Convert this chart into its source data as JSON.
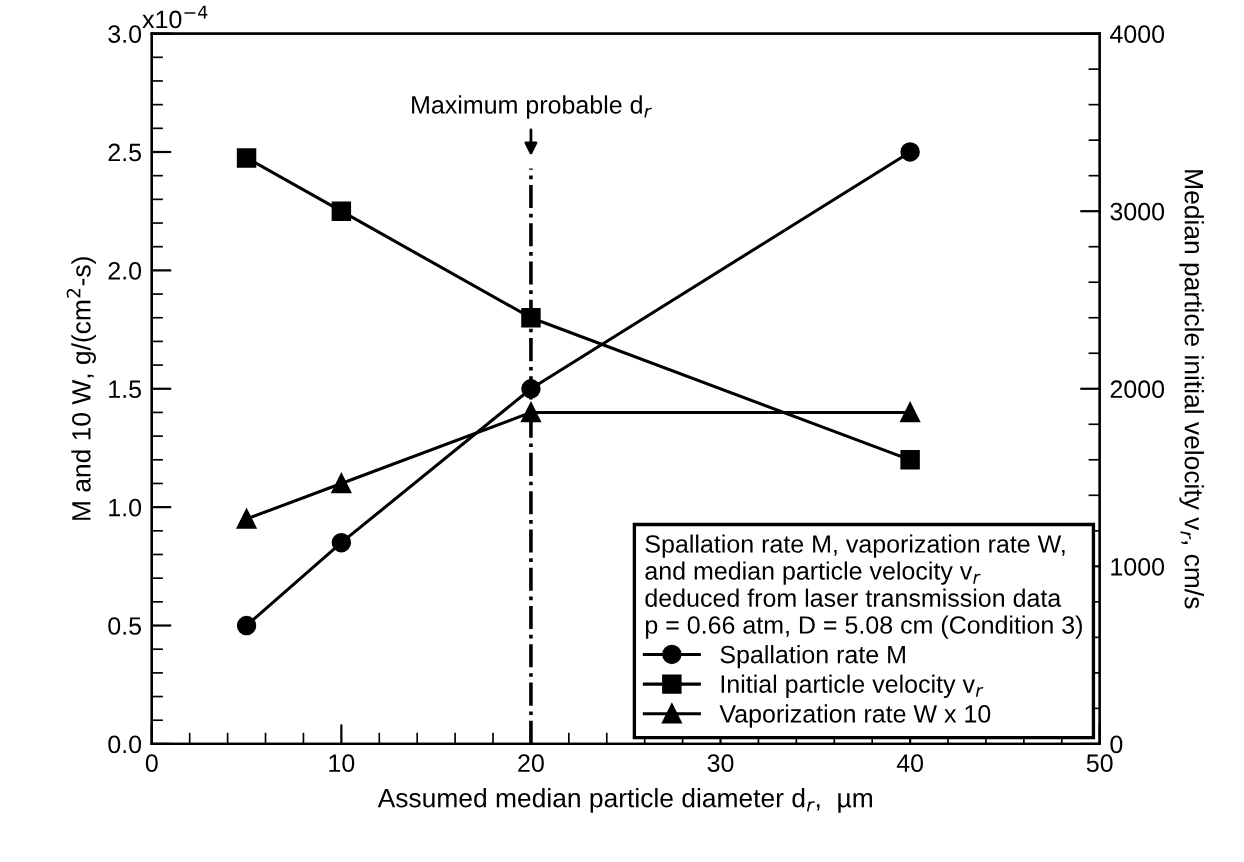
{
  "chart_data": {
    "type": "line",
    "xlabel": "Assumed median particle diameter d$_{r}$,  µm",
    "ylabel": "M and 10 W, g/(cm$^{2}$-s)",
    "y2label": "Median particle initial velocity v$_{r}$, cm/s",
    "legend_title": "Spallation rate M, vaporization rate W,\nand median particle velocity v$_{r}$\ndeduced from laser transmission data\np = 0.66 atm, D = 5.08 cm (Condition 3)",
    "legend": "bottom right",
    "grid": false,
    "line_style": "solid",
    "xlim": [
      0,
      50
    ],
    "xticks": [
      0,
      10,
      20,
      30,
      40,
      50
    ],
    "ylim": [
      0,
      3.0
    ],
    "yticks": [
      {
        "value": 0,
        "label": "0.0"
      },
      {
        "value": 0.5,
        "label": "0.5"
      },
      {
        "value": 1.0,
        "label": "1.0"
      },
      {
        "value": 1.5,
        "label": "1.5"
      },
      {
        "value": 2.0,
        "label": "2.0"
      },
      {
        "value": 2.5,
        "label": "2.5"
      },
      {
        "value": 3.0,
        "label": "3.0"
      }
    ],
    "annotations": [
      "x10$^{−4}$"
    ],
    "y2lim": [
      0,
      4000
    ],
    "y2ticks": [
      0,
      1000,
      2000,
      3000,
      4000
    ],
    "ref_lines": [
      {
        "axis": "x",
        "value": 20,
        "label": "Maximum probable d$_{r}$",
        "line_style": "dashdot",
        "color": "#000000"
      }
    ],
    "series": [
      {
        "name": "Spallation rate M",
        "color": "#000000",
        "marker": "circle",
        "x": [
          5,
          10,
          20,
          40
        ],
        "values": [
          0.5,
          0.85,
          1.5,
          2.5
        ]
      },
      {
        "name": "Initial particle velocity v$_{r}$",
        "color": "#000000",
        "marker": "square",
        "axis": "y2",
        "x": [
          5,
          10,
          20,
          40
        ],
        "values": [
          3300,
          3000,
          2400,
          1600
        ]
      },
      {
        "name": "Vaporization rate W x 10",
        "color": "#000000",
        "marker": "triangle",
        "x": [
          5,
          10,
          20,
          40
        ],
        "values": [
          0.95,
          1.1,
          1.4,
          1.4
        ]
      }
    ]
  }
}
